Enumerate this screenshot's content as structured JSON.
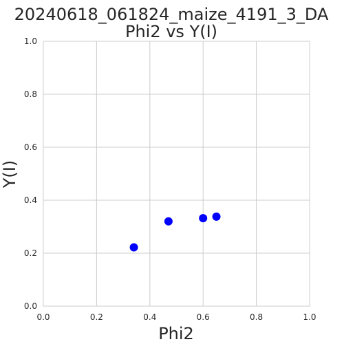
{
  "chart_data": {
    "type": "scatter",
    "title": "20240618_061824_maize_4191_3_DA",
    "subtitle": "Phi2 vs Y(I)",
    "xlabel": "Phi2",
    "ylabel": "Y(I)",
    "xlim": [
      0.0,
      1.0
    ],
    "ylim": [
      0.0,
      1.0
    ],
    "xticks": [
      "0.0",
      "0.2",
      "0.4",
      "0.6",
      "0.8",
      "1.0"
    ],
    "yticks": [
      "0.0",
      "0.2",
      "0.4",
      "0.6",
      "0.8",
      "1.0"
    ],
    "grid": true,
    "marker_color": "#0000ff",
    "points": [
      {
        "x": 0.34,
        "y": 0.222
      },
      {
        "x": 0.47,
        "y": 0.32
      },
      {
        "x": 0.6,
        "y": 0.332
      },
      {
        "x": 0.65,
        "y": 0.338
      }
    ]
  }
}
